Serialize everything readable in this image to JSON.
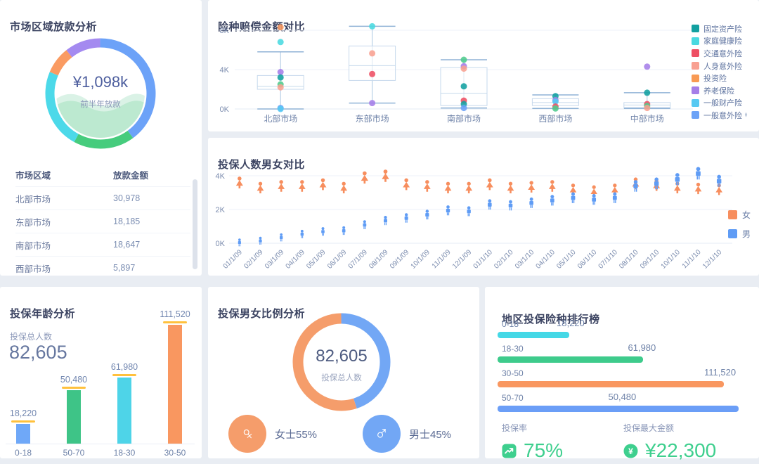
{
  "panels": {
    "region_loan": {
      "title": "市场区域放款分析",
      "donut_center_value": "¥1,098k",
      "donut_center_label": "前半年放款",
      "table_headers": [
        "市场区域",
        "放款金额"
      ],
      "table_rows": [
        [
          "北部市场",
          "30,978"
        ],
        [
          "东部市场",
          "18,185"
        ],
        [
          "南部市场",
          "18,647"
        ],
        [
          "西部市场",
          "5,897"
        ]
      ]
    },
    "claims": {
      "title": "险种赔偿金额对比",
      "legend": [
        {
          "label": "固定资产险",
          "color": "#12a0a0"
        },
        {
          "label": "家庭健康险",
          "color": "#4ad9e0"
        },
        {
          "label": "交通意外险",
          "color": "#ee4f63"
        },
        {
          "label": "人身意外险",
          "color": "#f8a091"
        },
        {
          "label": "投资险",
          "color": "#f89a54"
        },
        {
          "label": "养老保险",
          "color": "#a57ee8"
        },
        {
          "label": "一般财产险",
          "color": "#57c9f2"
        },
        {
          "label": "一般意外险",
          "color": "#6ba2f7"
        }
      ]
    },
    "picto": {
      "title": "投保人数男女对比"
    },
    "age": {
      "title": "投保年龄分析",
      "total_label": "投保总人数",
      "total_value": "82,605"
    },
    "ratio": {
      "title": "投保男女比例分析",
      "center_value": "82,605",
      "center_label": "投保总人数",
      "female_label": "女士55%",
      "male_label": "男士45%",
      "female_color": "#f59d6b",
      "male_color": "#72a7f5"
    },
    "ranking": {
      "title": "地区投保险种排行榜",
      "stats": [
        {
          "label": "投保率",
          "value": "75%"
        },
        {
          "label": "投保最大金额",
          "value": "¥22,300"
        }
      ],
      "accent": "#3ecf8e"
    }
  },
  "chart_data": [
    {
      "id": "region-loan-donut",
      "type": "pie",
      "title": "市场区域放款分析",
      "center_value": "¥1,098k",
      "center_label": "前半年放款",
      "slices": [
        {
          "pct": 40,
          "color": "#6ca2f8"
        },
        {
          "pct": 18,
          "color": "#46cc7d"
        },
        {
          "pct": 23.5,
          "color": "#4cd9e9"
        },
        {
          "pct": 8,
          "color": "#fa9b62"
        },
        {
          "pct": 10.5,
          "color": "#a48af0"
        }
      ]
    },
    {
      "id": "claims-boxplot",
      "type": "boxplot",
      "title": "险种赔偿金额对比",
      "categories": [
        "北部市场",
        "东部市场",
        "南部市场",
        "西部市场",
        "中部市场"
      ],
      "ytick_labels": [
        "0K",
        "4K",
        "8K"
      ],
      "yticks": [
        0,
        4,
        8
      ],
      "ylim": [
        0,
        8.8
      ],
      "boxes": [
        {
          "low": 0,
          "q1": 2.0,
          "median": 2.3,
          "q3": 3.4,
          "high": 5.8
        },
        {
          "low": 0.6,
          "q1": 2.9,
          "median": 4.4,
          "q3": 6.4,
          "high": 8.4
        },
        {
          "low": 0.1,
          "q1": 0.35,
          "median": 1.6,
          "q3": 4.2,
          "high": 5.0
        },
        {
          "low": 0.05,
          "q1": 0.35,
          "median": 0.65,
          "q3": 1.05,
          "high": 1.43
        },
        {
          "low": 0.05,
          "q1": 0.15,
          "median": 0.4,
          "q3": 0.65,
          "high": 1.65
        }
      ],
      "points": [
        [
          [
            8.3,
            "#fa9b62"
          ],
          [
            6.8,
            "#4ad9e0"
          ],
          [
            3.75,
            "#a57ee8"
          ],
          [
            3.2,
            "#12a0a0"
          ],
          [
            2.5,
            "#4ecb8d"
          ],
          [
            2.2,
            "#f8a091"
          ],
          [
            0.1,
            "#6ba2f7"
          ],
          [
            0.0,
            "#57c9f2"
          ]
        ],
        [
          [
            8.4,
            "#4ad9e0"
          ],
          [
            5.65,
            "#f8a091"
          ],
          [
            3.55,
            "#ee4f63"
          ],
          [
            0.6,
            "#a57ee8"
          ]
        ],
        [
          [
            5.0,
            "#4ecb8d"
          ],
          [
            4.35,
            "#a57ee8"
          ],
          [
            4.1,
            "#f8a091"
          ],
          [
            2.3,
            "#12a0a0"
          ],
          [
            0.85,
            "#ee4f63"
          ],
          [
            0.5,
            "#12a0a0"
          ],
          [
            0.1,
            "#6ba2f7"
          ]
        ],
        [
          [
            1.3,
            "#12a0a0"
          ],
          [
            0.9,
            "#a57ee8"
          ],
          [
            0.75,
            "#57c9f2"
          ],
          [
            0.25,
            "#ee4f63"
          ],
          [
            0.05,
            "#4ecb8d"
          ]
        ],
        [
          [
            4.3,
            "#a57ee8"
          ],
          [
            1.65,
            "#12a0a0"
          ],
          [
            0.5,
            "#ee4f63"
          ],
          [
            0.3,
            "#4ecb8d"
          ],
          [
            0.1,
            "#f8a091"
          ]
        ]
      ]
    },
    {
      "id": "gender-picto",
      "type": "pictograph",
      "title": "投保人数男女对比",
      "x": [
        "01/1/09",
        "02/1/09",
        "03/1/09",
        "04/1/09",
        "05/1/09",
        "06/1/09",
        "07/1/09",
        "08/1/09",
        "09/1/09",
        "10/1/09",
        "11/1/09",
        "12/1/09",
        "01/1/10",
        "02/1/10",
        "03/1/10",
        "04/1/10",
        "05/1/10",
        "06/1/10",
        "07/1/10",
        "08/1/10",
        "09/1/10",
        "10/1/10",
        "11/1/10",
        "12/1/10"
      ],
      "ytick_labels": [
        "0K",
        "2K",
        "4K"
      ],
      "yticks": [
        0,
        2,
        4
      ],
      "ylim": [
        0,
        4.6
      ],
      "series": [
        {
          "name": "女",
          "color": "#f78e5e",
          "values": [
            3.6,
            3.3,
            3.4,
            3.4,
            3.5,
            3.3,
            3.9,
            4.0,
            3.5,
            3.4,
            3.3,
            3.3,
            3.5,
            3.3,
            3.35,
            3.4,
            3.2,
            3.1,
            3.2,
            3.55,
            3.45,
            3.3,
            3.25,
            3.2
          ]
        },
        {
          "name": "男",
          "color": "#5f9cf5",
          "values": [
            0.05,
            0.15,
            0.35,
            0.55,
            0.7,
            0.75,
            1.1,
            1.35,
            1.5,
            1.7,
            1.95,
            1.9,
            2.3,
            2.25,
            2.4,
            2.55,
            2.7,
            2.6,
            2.7,
            3.4,
            3.55,
            3.8,
            4.15,
            3.7
          ]
        }
      ],
      "legend_position": "right"
    },
    {
      "id": "age-bar",
      "type": "bar",
      "title": "投保年龄分析",
      "categories": [
        "0-18",
        "50-70",
        "18-30",
        "30-50"
      ],
      "values": [
        18220,
        50480,
        61980,
        111520
      ],
      "value_labels": [
        "18,220",
        "50,480",
        "61,980",
        "111,520"
      ],
      "colors": [
        "#6fa8f8",
        "#3ec487",
        "#4ed4e8",
        "#f99760"
      ],
      "cap_color": "#ffc13d",
      "ylim": [
        0,
        111520
      ]
    },
    {
      "id": "gender-ratio-donut",
      "type": "donut",
      "title": "投保男女比例分析",
      "center_value": "82,605",
      "center_label": "投保总人数",
      "slices": [
        {
          "name": "男",
          "pct": 45,
          "color": "#72a7f5"
        },
        {
          "name": "女",
          "pct": 55,
          "color": "#f59d6b"
        }
      ]
    },
    {
      "id": "region-ranking",
      "type": "hbar",
      "title": "地区投保险种排行榜",
      "rows": [
        {
          "label": "0-18",
          "value": 18220,
          "value_label": "18,220",
          "color": "#45d8e6",
          "bar_pct": 29,
          "value_x_pct": 24
        },
        {
          "label": "18-30",
          "value": 61980,
          "value_label": "61,980",
          "color": "#3ecb8c",
          "bar_pct": 59,
          "value_x_pct": 53
        },
        {
          "label": "30-50",
          "value": 111520,
          "value_label": "111,520",
          "color": "#f99760",
          "bar_pct": 92,
          "value_x_pct": 84
        },
        {
          "label": "50-70",
          "value": 50480,
          "value_label": "50,480",
          "color": "#6b9ef7",
          "bar_pct": 98,
          "value_x_pct": 45
        }
      ]
    }
  ]
}
